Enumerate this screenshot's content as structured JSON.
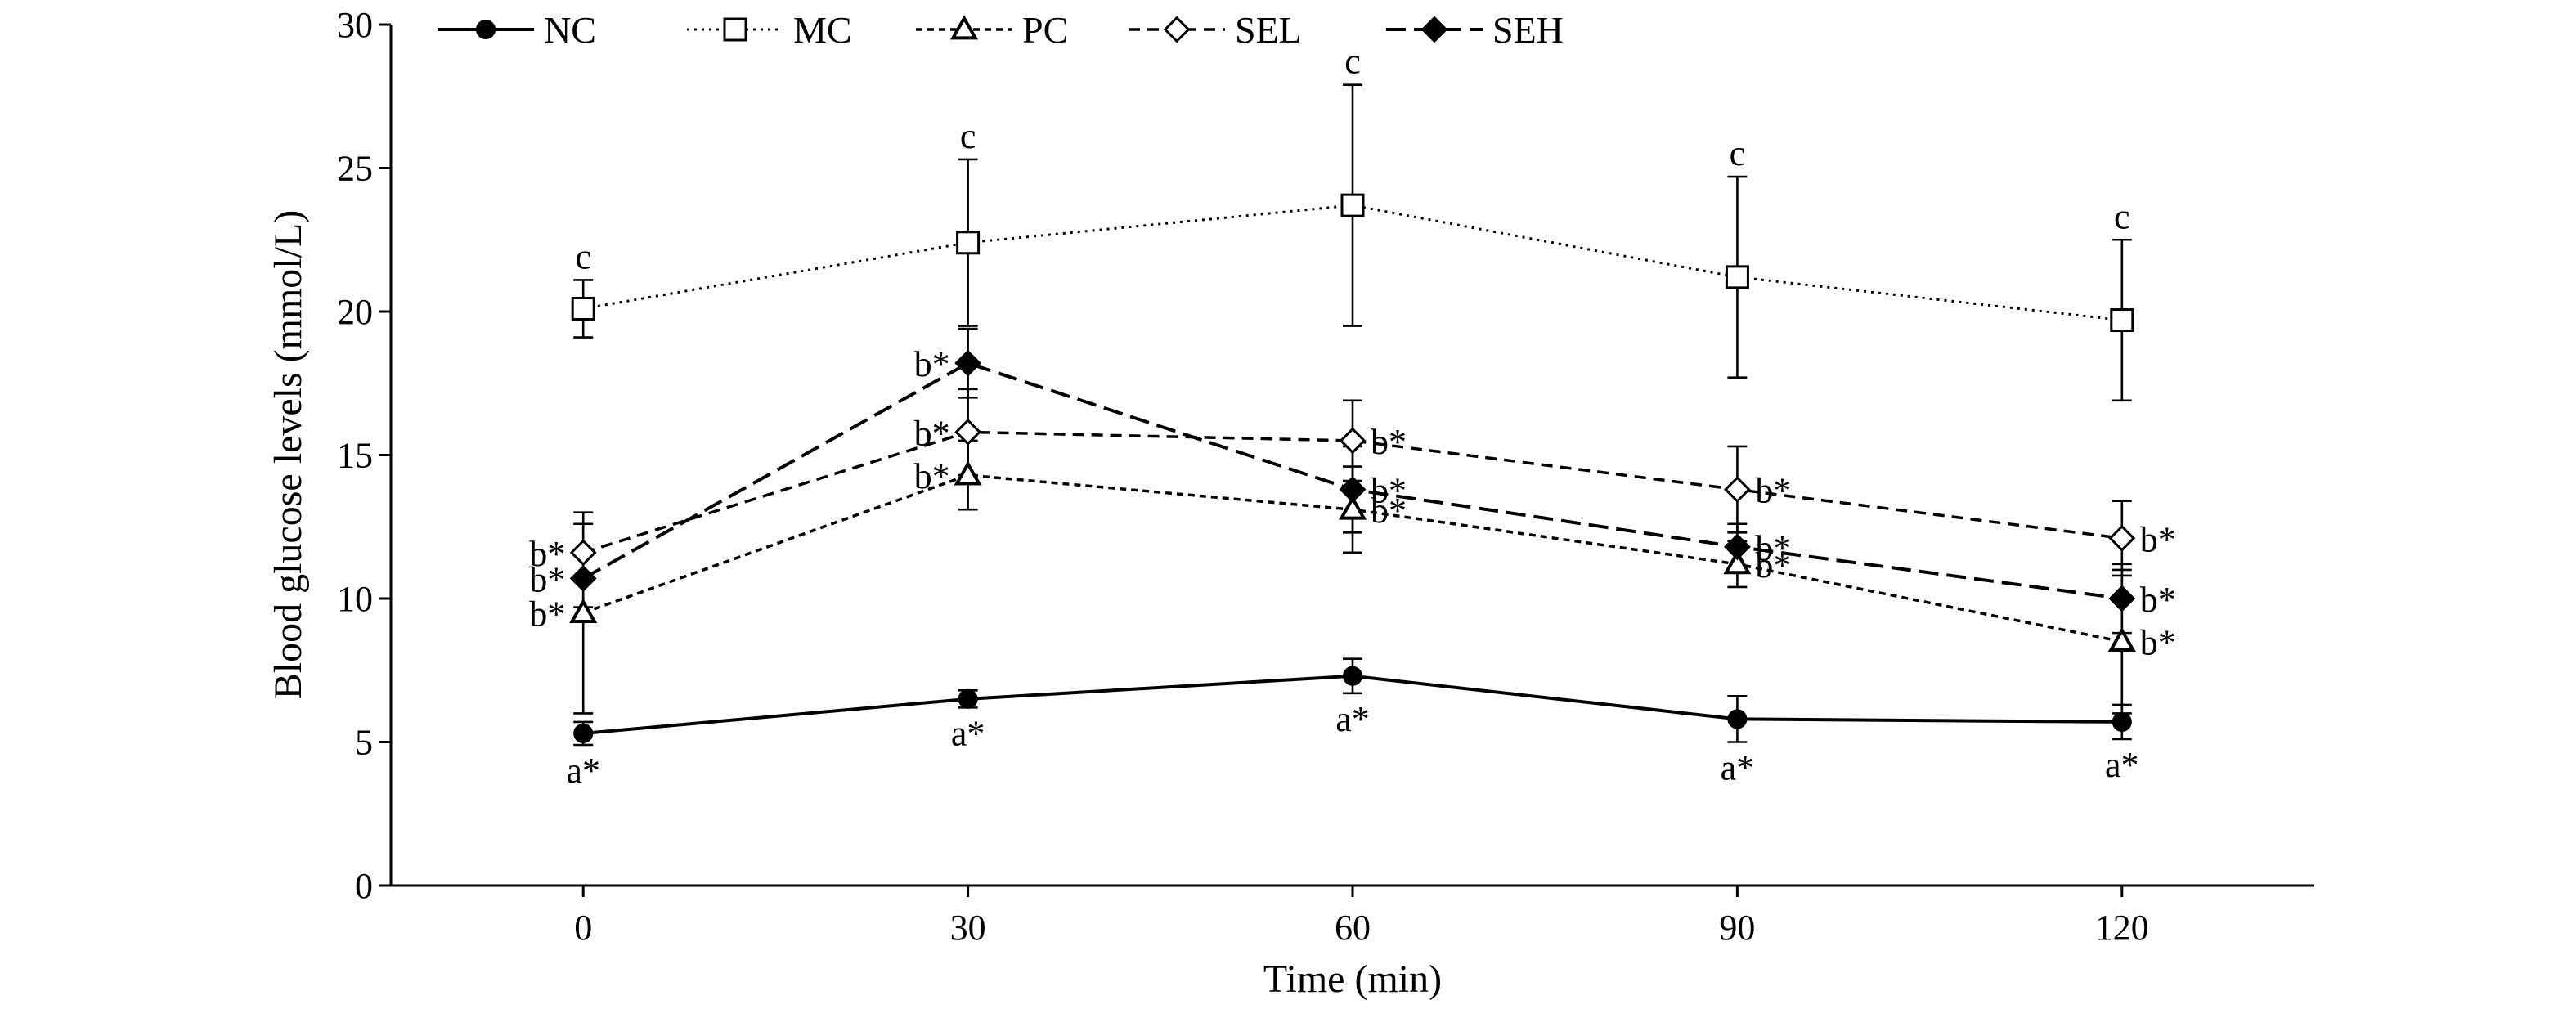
{
  "chart_data": {
    "type": "line",
    "xlabel": "Time (min)",
    "ylabel": "Blood glucose levels (mmol/L)",
    "x": [
      0,
      30,
      60,
      90,
      120
    ],
    "x_ticks": [
      "0",
      "30",
      "60",
      "90",
      "120"
    ],
    "y_ticks": [
      "0",
      "5",
      "10",
      "15",
      "20",
      "25",
      "30"
    ],
    "xlim": [
      -15,
      135
    ],
    "ylim": [
      0,
      30
    ],
    "grid": false,
    "legend_position": "top-left",
    "series": [
      {
        "name": "NC",
        "marker": "filled-circle",
        "dash": "solid",
        "values": [
          5.3,
          6.5,
          7.3,
          5.8,
          5.7
        ],
        "errors": [
          0.4,
          0.3,
          0.6,
          0.8,
          0.6
        ],
        "labels": [
          "a*",
          "a*",
          "a*",
          "a*",
          "a*"
        ],
        "label_pos": [
          "below",
          "below",
          "below",
          "below",
          "below"
        ]
      },
      {
        "name": "MC",
        "marker": "open-square",
        "dash": "dotted",
        "values": [
          20.1,
          22.4,
          23.7,
          21.2,
          19.7
        ],
        "errors": [
          1.0,
          2.9,
          4.2,
          3.5,
          2.8
        ],
        "labels": [
          "c",
          "c",
          "c",
          "c",
          "c"
        ],
        "label_pos": [
          "above",
          "above",
          "above",
          "above",
          "above"
        ]
      },
      {
        "name": "PC",
        "marker": "open-triangle",
        "dash": "short-dash",
        "values": [
          9.5,
          14.3,
          13.1,
          11.2,
          8.5
        ],
        "errors": [
          3.5,
          1.2,
          1.5,
          0.8,
          2.5
        ],
        "labels": [
          "b*",
          "b*",
          "b*",
          "b*",
          "b*"
        ],
        "label_pos": [
          "left",
          "left",
          "right",
          "right",
          "right"
        ]
      },
      {
        "name": "SEL",
        "marker": "open-diamond",
        "dash": "dash",
        "values": [
          11.6,
          15.8,
          15.5,
          13.8,
          12.1
        ],
        "errors": [
          1.0,
          1.5,
          1.4,
          1.5,
          1.3
        ],
        "labels": [
          "b*",
          "b*",
          "b*",
          "b*",
          "b*"
        ],
        "label_pos": [
          "left",
          "left",
          "right",
          "right",
          "right"
        ]
      },
      {
        "name": "SEH",
        "marker": "filled-diamond",
        "dash": "long-dash",
        "values": [
          10.7,
          18.2,
          13.8,
          11.8,
          10.0
        ],
        "errors": [
          1.0,
          1.2,
          1.5,
          0.8,
          1.2
        ],
        "labels": [
          "b*",
          "b*",
          "b*",
          "b*",
          "b*"
        ],
        "label_pos": [
          "left",
          "left",
          "right",
          "right",
          "right"
        ]
      }
    ]
  }
}
